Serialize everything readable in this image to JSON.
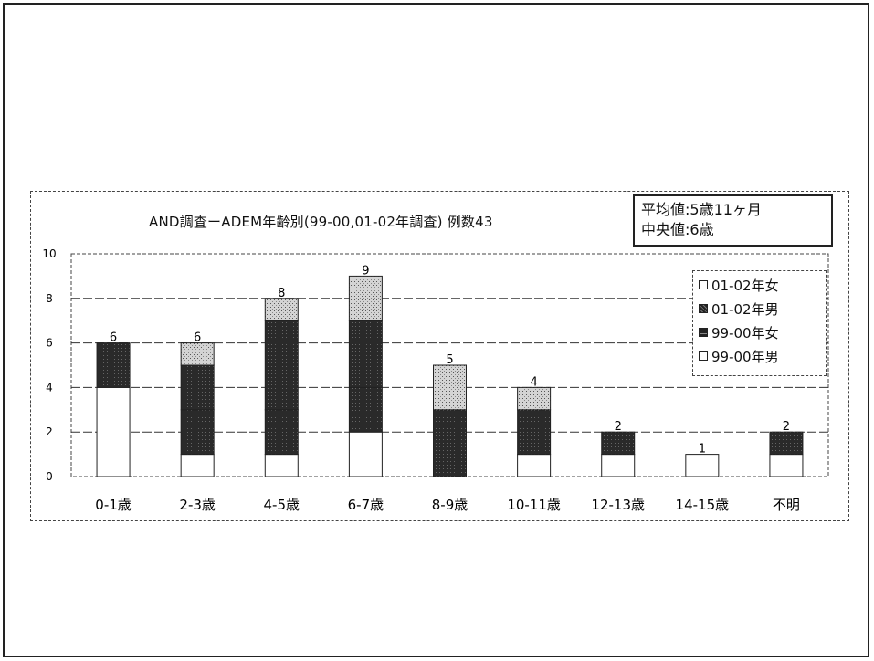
{
  "chart_data": {
    "type": "bar",
    "stacked": true,
    "title": "AND調査ーADEM年齢別(99-00,01-02年調査)  例数43",
    "categories": [
      "0-1歳",
      "2-3歳",
      "4-5歳",
      "6-7歳",
      "8-9歳",
      "10-11歳",
      "12-13歳",
      "14-15歳",
      "不明"
    ],
    "series": [
      {
        "name": "99-00年男",
        "values": [
          4,
          1,
          1,
          2,
          0,
          1,
          1,
          1,
          1
        ],
        "color": "#ffffff"
      },
      {
        "name": "99-00年女",
        "values": [
          2,
          2,
          2,
          2,
          0,
          2,
          0,
          0,
          0
        ],
        "color": "#262626"
      },
      {
        "name": "01-02年男",
        "values": [
          0,
          2,
          4,
          3,
          3,
          0,
          1,
          0,
          1
        ],
        "color": "#3a3a3a"
      },
      {
        "name": "01-02年女",
        "values": [
          0,
          1,
          1,
          2,
          2,
          1,
          0,
          0,
          0
        ],
        "color": "#cfcfcf"
      }
    ],
    "totals": [
      6,
      6,
      8,
      9,
      5,
      4,
      2,
      1,
      2
    ],
    "ylim": [
      0,
      10
    ],
    "yticks": [
      0,
      2,
      4,
      6,
      8,
      10
    ],
    "grid": true,
    "legend_position": "right",
    "legend_order": [
      "01-02年女",
      "01-02年男",
      "99-00年女",
      "99-00年男"
    ]
  },
  "stats": {
    "mean": "平均値:5歳11ヶ月",
    "median": "中央値:6歳"
  }
}
